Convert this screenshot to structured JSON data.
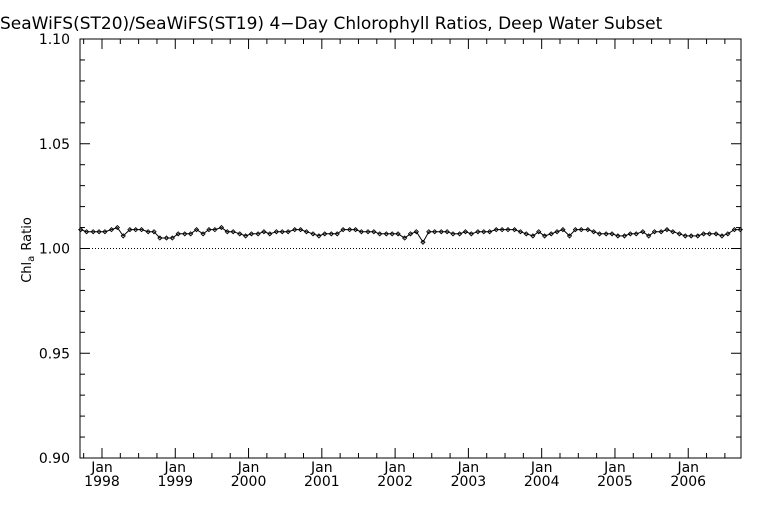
{
  "chart_data": {
    "type": "line",
    "title": "SeaWiFS(ST20)/SeaWiFS(ST19) 4−Day Chlorophyll Ratios, Deep Water Subset",
    "ylabel": {
      "prefix": "Chl",
      "subscript": "a",
      "suffix": " Ratio"
    },
    "xlabel": "",
    "ylim": [
      0.9,
      1.1
    ],
    "xlim": [
      1997.7,
      2006.72
    ],
    "yticks": [
      {
        "value": 0.9,
        "label": "0.90"
      },
      {
        "value": 0.95,
        "label": "0.95"
      },
      {
        "value": 1.0,
        "label": "1.00"
      },
      {
        "value": 1.05,
        "label": "1.05"
      },
      {
        "value": 1.1,
        "label": "1.10"
      }
    ],
    "xticks": [
      {
        "value": 1998,
        "month": "Jan",
        "year": "1998"
      },
      {
        "value": 1999,
        "month": "Jan",
        "year": "1999"
      },
      {
        "value": 2000,
        "month": "Jan",
        "year": "2000"
      },
      {
        "value": 2001,
        "month": "Jan",
        "year": "2001"
      },
      {
        "value": 2002,
        "month": "Jan",
        "year": "2002"
      },
      {
        "value": 2003,
        "month": "Jan",
        "year": "2003"
      },
      {
        "value": 2004,
        "month": "Jan",
        "year": "2004"
      },
      {
        "value": 2005,
        "month": "Jan",
        "year": "2005"
      },
      {
        "value": 2006,
        "month": "Jan",
        "year": "2006"
      }
    ],
    "reference_line": 1.0,
    "grid": false,
    "series": [
      {
        "x": [
          1997.71,
          1997.79,
          1997.88,
          1997.96,
          1998.04,
          1998.13,
          1998.21,
          1998.29,
          1998.38,
          1998.46,
          1998.54,
          1998.63,
          1998.71,
          1998.79,
          1998.88,
          1998.96,
          1999.04,
          1999.13,
          1999.21,
          1999.29,
          1999.38,
          1999.46,
          1999.54,
          1999.63,
          1999.71,
          1999.79,
          1999.88,
          1999.96,
          2000.04,
          2000.13,
          2000.21,
          2000.29,
          2000.38,
          2000.46,
          2000.54,
          2000.63,
          2000.71,
          2000.79,
          2000.88,
          2000.96,
          2001.04,
          2001.13,
          2001.21,
          2001.29,
          2001.38,
          2001.46,
          2001.54,
          2001.63,
          2001.71,
          2001.79,
          2001.88,
          2001.96,
          2002.04,
          2002.13,
          2002.21,
          2002.29,
          2002.38,
          2002.46,
          2002.54,
          2002.63,
          2002.71,
          2002.79,
          2002.88,
          2002.96,
          2003.04,
          2003.13,
          2003.21,
          2003.29,
          2003.38,
          2003.46,
          2003.54,
          2003.63,
          2003.71,
          2003.79,
          2003.88,
          2003.96,
          2004.04,
          2004.13,
          2004.21,
          2004.29,
          2004.38,
          2004.46,
          2004.54,
          2004.63,
          2004.71,
          2004.79,
          2004.88,
          2004.96,
          2005.04,
          2005.13,
          2005.21,
          2005.29,
          2005.38,
          2005.46,
          2005.54,
          2005.63,
          2005.71,
          2005.79,
          2005.88,
          2005.96,
          2006.04,
          2006.13,
          2006.21,
          2006.29,
          2006.38,
          2006.46,
          2006.54,
          2006.63,
          2006.71
        ],
        "y": [
          1.009,
          1.008,
          1.008,
          1.008,
          1.008,
          1.009,
          1.01,
          1.006,
          1.009,
          1.009,
          1.009,
          1.008,
          1.008,
          1.005,
          1.005,
          1.005,
          1.007,
          1.007,
          1.007,
          1.009,
          1.007,
          1.009,
          1.009,
          1.01,
          1.008,
          1.008,
          1.007,
          1.006,
          1.007,
          1.007,
          1.008,
          1.007,
          1.008,
          1.008,
          1.008,
          1.009,
          1.009,
          1.008,
          1.007,
          1.006,
          1.007,
          1.007,
          1.007,
          1.009,
          1.009,
          1.009,
          1.008,
          1.008,
          1.008,
          1.007,
          1.007,
          1.007,
          1.007,
          1.005,
          1.007,
          1.008,
          1.003,
          1.008,
          1.008,
          1.008,
          1.008,
          1.007,
          1.007,
          1.008,
          1.007,
          1.008,
          1.008,
          1.008,
          1.009,
          1.009,
          1.009,
          1.009,
          1.008,
          1.007,
          1.006,
          1.008,
          1.006,
          1.007,
          1.008,
          1.009,
          1.006,
          1.009,
          1.009,
          1.009,
          1.008,
          1.007,
          1.007,
          1.007,
          1.006,
          1.006,
          1.007,
          1.007,
          1.008,
          1.006,
          1.008,
          1.008,
          1.009,
          1.008,
          1.007,
          1.006,
          1.006,
          1.006,
          1.007,
          1.007,
          1.007,
          1.006,
          1.007,
          1.009,
          1.009
        ]
      }
    ]
  }
}
